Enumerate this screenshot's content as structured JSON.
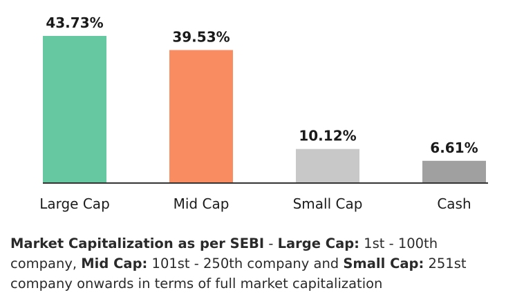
{
  "chart_data": {
    "type": "bar",
    "categories": [
      "Large Cap",
      "Mid Cap",
      "Small Cap",
      "Cash"
    ],
    "values": [
      43.73,
      39.53,
      10.12,
      6.61
    ],
    "value_labels": [
      "43.73%",
      "39.53%",
      "10.12%",
      "6.61%"
    ],
    "colors": [
      "#66c8a0",
      "#fa8c62",
      "#c8c8c8",
      "#a0a0a0"
    ],
    "title": "",
    "xlabel": "",
    "ylabel": "",
    "ylim": [
      0,
      43.73
    ],
    "grid": false,
    "legend": "none"
  },
  "footnote": {
    "term1": "Market Capitalization as per SEBI",
    "sep1": " - ",
    "term2": "Large Cap:",
    "text2": " 1st - 100th company, ",
    "term3": "Mid Cap:",
    "text3": " 101st - 250th company and ",
    "term4": "Small Cap:",
    "text4": " 251st company onwards in terms of full market capitalization"
  }
}
